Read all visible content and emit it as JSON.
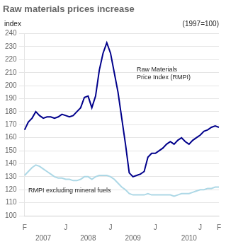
{
  "chart_data": {
    "type": "line",
    "title": "Raw materials prices increase",
    "ylabel": "index",
    "ylabel_right": "(1997=100)",
    "categories": [
      "F",
      null,
      null,
      null,
      null,
      null,
      null,
      null,
      null,
      null,
      null,
      "J",
      null,
      null,
      null,
      null,
      null,
      null,
      null,
      null,
      null,
      null,
      null,
      "J",
      null,
      null,
      null,
      null,
      null,
      null,
      null,
      null,
      null,
      null,
      null,
      "J",
      null,
      null,
      null,
      null,
      null,
      null,
      null,
      null,
      null,
      null,
      null,
      "J",
      null,
      null,
      null,
      null,
      "F"
    ],
    "year_categories": [
      null,
      null,
      null,
      null,
      null,
      "2007",
      null,
      null,
      null,
      null,
      null,
      null,
      null,
      null,
      null,
      null,
      null,
      "2008",
      null,
      null,
      null,
      null,
      null,
      null,
      null,
      null,
      null,
      null,
      null,
      "2009",
      null,
      null,
      null,
      null,
      null,
      null,
      null,
      null,
      null,
      null,
      null,
      null,
      null,
      null,
      "2010",
      null,
      null,
      null,
      null,
      null,
      null,
      null,
      null
    ],
    "series": [
      {
        "color": "#00008B",
        "values": [
          166,
          172,
          175,
          180,
          177,
          175,
          176,
          176,
          175,
          176,
          178,
          177,
          176,
          177,
          180,
          183,
          191,
          192,
          183,
          192,
          212,
          225,
          233,
          225,
          210,
          195,
          175,
          155,
          133,
          130,
          131,
          132,
          134,
          145,
          148,
          148,
          150,
          152,
          155,
          157,
          155,
          158,
          160,
          157,
          155,
          158,
          160,
          162,
          165,
          166,
          168,
          169,
          168
        ]
      },
      {
        "color": "#ADD8E6",
        "values": [
          131,
          134,
          137,
          139,
          138,
          136,
          134,
          132,
          130,
          129,
          129,
          128,
          128,
          127,
          127,
          128,
          130,
          130,
          128,
          130,
          131,
          131,
          131,
          130,
          128,
          125,
          122,
          120,
          117,
          116,
          116,
          116,
          116,
          117,
          116,
          116,
          116,
          116,
          116,
          116,
          115,
          116,
          117,
          117,
          117,
          118,
          119,
          120,
          120,
          121,
          121,
          122,
          122
        ]
      }
    ],
    "annotations": [
      {
        "text": "Raw Materials\nPrice Index (RMPI)",
        "x": 30,
        "y": 215
      },
      {
        "text": "RMPI excluding mineral fuels",
        "x": 1,
        "y": 122
      }
    ],
    "ylim": [
      100,
      240
    ],
    "yticks": [
      100,
      110,
      120,
      130,
      140,
      150,
      160,
      170,
      180,
      190,
      200,
      210,
      220,
      230,
      240
    ],
    "grid": true
  }
}
